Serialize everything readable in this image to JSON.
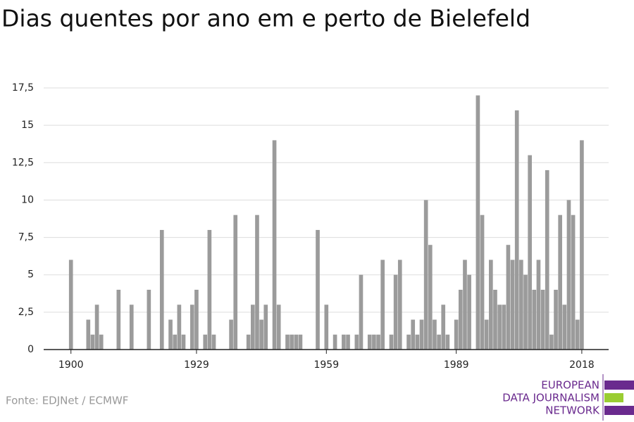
{
  "chart_data": {
    "type": "bar",
    "title": "Dias quentes por ano em e perto de Bielefeld",
    "x": [
      1900,
      1904,
      1905,
      1906,
      1907,
      1911,
      1914,
      1918,
      1921,
      1923,
      1924,
      1925,
      1926,
      1928,
      1929,
      1931,
      1932,
      1933,
      1937,
      1938,
      1941,
      1942,
      1943,
      1944,
      1945,
      1947,
      1948,
      1950,
      1951,
      1952,
      1953,
      1957,
      1959,
      1961,
      1963,
      1964,
      1966,
      1967,
      1969,
      1970,
      1971,
      1972,
      1974,
      1975,
      1976,
      1978,
      1979,
      1980,
      1981,
      1982,
      1983,
      1984,
      1985,
      1986,
      1987,
      1989,
      1990,
      1991,
      1992,
      1994,
      1995,
      1996,
      1997,
      1998,
      1999,
      2000,
      2001,
      2002,
      2003,
      2004,
      2005,
      2006,
      2007,
      2008,
      2009,
      2010,
      2011,
      2012,
      2013,
      2014,
      2015,
      2016,
      2017,
      2018
    ],
    "values": [
      6,
      2,
      1,
      3,
      1,
      4,
      3,
      4,
      8,
      2,
      1,
      3,
      1,
      3,
      4,
      1,
      8,
      1,
      2,
      9,
      1,
      3,
      9,
      2,
      3,
      14,
      3,
      1,
      1,
      1,
      1,
      8,
      3,
      1,
      1,
      1,
      1,
      5,
      1,
      1,
      1,
      6,
      1,
      5,
      6,
      1,
      2,
      1,
      2,
      10,
      7,
      2,
      1,
      3,
      1,
      2,
      4,
      6,
      5,
      17,
      9,
      2,
      6,
      4,
      3,
      3,
      7,
      6,
      16,
      6,
      5,
      13,
      4,
      6,
      4,
      12,
      1,
      4,
      9,
      3,
      10,
      9,
      2,
      14
    ],
    "color": "#9b9b9b",
    "xlim": [
      1893.7,
      2024.2
    ],
    "xticks": [
      1900,
      1929,
      1959,
      1989,
      2018
    ],
    "ylim": [
      0,
      17.5
    ],
    "yticks": [
      0,
      {
        "value": 2.5,
        "label": "2,5"
      },
      5,
      {
        "value": 7.5,
        "label": "7,5"
      },
      10,
      {
        "value": 12.5,
        "label": "12,5"
      },
      15,
      {
        "value": 17.5,
        "label": "17,5"
      }
    ],
    "grid": true,
    "source": "Fonte: EDJNet / ECMWF",
    "logo": [
      "EUROPEAN",
      "DATA JOURNALISM",
      "NETWORK"
    ]
  }
}
